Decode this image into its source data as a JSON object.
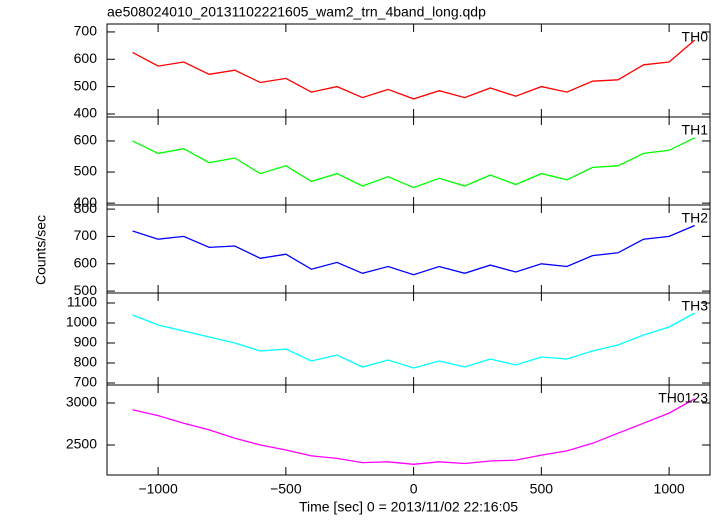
{
  "chart_data": [
    {
      "type": "line",
      "title": "ae508024010_20131102221605_wam2_trn_4band_long.qdp",
      "x": [
        -1100,
        -1000,
        -900,
        -800,
        -700,
        -600,
        -500,
        -400,
        -300,
        -200,
        -100,
        0,
        100,
        200,
        300,
        400,
        500,
        600,
        700,
        800,
        900,
        1000,
        1100
      ],
      "series": [
        {
          "name": "TH0",
          "color": "#ff0000",
          "values": [
            625,
            575,
            590,
            545,
            560,
            515,
            530,
            480,
            500,
            460,
            490,
            455,
            485,
            460,
            495,
            465,
            500,
            480,
            520,
            525,
            580,
            590,
            670
          ]
        }
      ],
      "xlim": [
        -1200,
        1160
      ],
      "ylim": [
        389,
        729
      ],
      "yticks": [
        400,
        500,
        600,
        700
      ]
    },
    {
      "type": "line",
      "x": [
        -1100,
        -1000,
        -900,
        -800,
        -700,
        -600,
        -500,
        -400,
        -300,
        -200,
        -100,
        0,
        100,
        200,
        300,
        400,
        500,
        600,
        700,
        800,
        900,
        1000,
        1100
      ],
      "series": [
        {
          "name": "TH1",
          "color": "#00ff00",
          "values": [
            600,
            560,
            575,
            530,
            545,
            495,
            520,
            470,
            495,
            455,
            485,
            450,
            480,
            455,
            490,
            460,
            495,
            475,
            515,
            520,
            560,
            570,
            610
          ]
        }
      ],
      "xlim": [
        -1200,
        1160
      ],
      "ylim": [
        394,
        677
      ],
      "yticks": [
        400,
        500,
        600
      ]
    },
    {
      "type": "line",
      "ylabel": "Counts/sec",
      "x": [
        -1100,
        -1000,
        -900,
        -800,
        -700,
        -600,
        -500,
        -400,
        -300,
        -200,
        -100,
        0,
        100,
        200,
        300,
        400,
        500,
        600,
        700,
        800,
        900,
        1000,
        1100
      ],
      "series": [
        {
          "name": "TH2",
          "color": "#0000ff",
          "values": [
            720,
            690,
            700,
            660,
            665,
            620,
            635,
            580,
            605,
            565,
            590,
            560,
            590,
            565,
            595,
            570,
            600,
            590,
            630,
            640,
            690,
            700,
            740
          ]
        }
      ],
      "xlim": [
        -1200,
        1160
      ],
      "ylim": [
        493,
        815
      ],
      "yticks": [
        500,
        600,
        700,
        800
      ]
    },
    {
      "type": "line",
      "x": [
        -1100,
        -1000,
        -900,
        -800,
        -700,
        -600,
        -500,
        -400,
        -300,
        -200,
        -100,
        0,
        100,
        200,
        300,
        400,
        500,
        600,
        700,
        800,
        900,
        1000,
        1100
      ],
      "series": [
        {
          "name": "TH3",
          "color": "#00ffff",
          "values": [
            1040,
            990,
            960,
            930,
            900,
            860,
            870,
            810,
            840,
            780,
            815,
            775,
            810,
            780,
            820,
            790,
            830,
            820,
            860,
            890,
            940,
            980,
            1050
          ]
        }
      ],
      "xlim": [
        -1200,
        1160
      ],
      "ylim": [
        690,
        1150
      ],
      "yticks": [
        700,
        800,
        900,
        1000,
        1100
      ]
    },
    {
      "type": "line",
      "xlabel": "Time [sec] 0 = 2013/11/02 22:16:05",
      "x": [
        -1100,
        -1000,
        -900,
        -800,
        -700,
        -600,
        -500,
        -400,
        -300,
        -200,
        -100,
        0,
        100,
        200,
        300,
        400,
        500,
        600,
        700,
        800,
        900,
        1000,
        1100
      ],
      "series": [
        {
          "name": "TH0123",
          "color": "#ff00ff",
          "values": [
            2920,
            2850,
            2760,
            2680,
            2580,
            2500,
            2440,
            2370,
            2340,
            2290,
            2300,
            2270,
            2300,
            2280,
            2310,
            2320,
            2380,
            2430,
            2520,
            2640,
            2760,
            2880,
            3050
          ]
        }
      ],
      "xlim": [
        -1200,
        1160
      ],
      "ylim": [
        2143,
        3214
      ],
      "yticks": [
        2500,
        3000
      ],
      "xticks": [
        {
          "value": -1000,
          "label": "−1000"
        },
        {
          "value": -500,
          "label": "−500"
        },
        0,
        500,
        1000
      ]
    }
  ]
}
